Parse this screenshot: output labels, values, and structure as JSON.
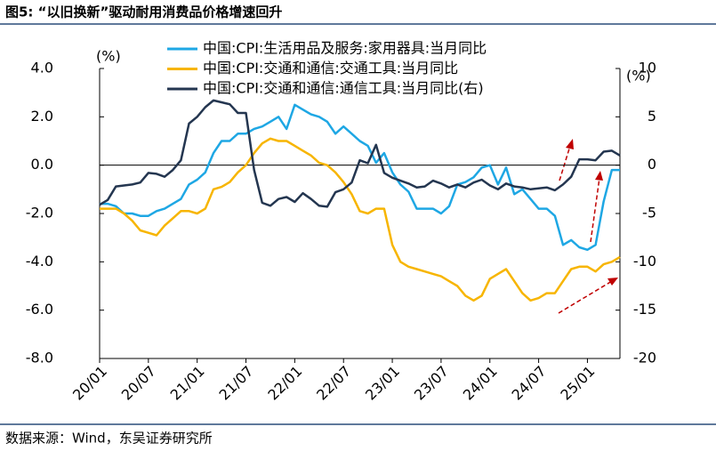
{
  "title": "图5: “以旧换新”驱动耐用消费品价格增速回升",
  "source": "数据来源：Wind，东吴证券研究所",
  "chart_data": {
    "type": "line",
    "y_unit": "(%)",
    "y2_unit": "(%)",
    "categories": [
      "20/01",
      null,
      null,
      null,
      null,
      null,
      "20/07",
      null,
      null,
      null,
      null,
      null,
      "21/01",
      null,
      null,
      null,
      null,
      null,
      "21/07",
      null,
      null,
      null,
      null,
      null,
      "22/01",
      null,
      null,
      null,
      null,
      null,
      "22/07",
      null,
      null,
      null,
      null,
      null,
      "23/01",
      null,
      null,
      null,
      null,
      null,
      "23/07",
      null,
      null,
      null,
      null,
      null,
      "24/01",
      null,
      null,
      null,
      null,
      null,
      "24/07",
      null,
      null,
      null,
      null,
      null,
      "25/01",
      null,
      null,
      null,
      null
    ],
    "ylim": [
      -8,
      4
    ],
    "yticks": [
      {
        "value": 4,
        "label": "4.0"
      },
      {
        "value": 2,
        "label": "2.0"
      },
      {
        "value": 0,
        "label": "0.0"
      },
      {
        "value": -2,
        "label": "-2.0"
      },
      {
        "value": -4,
        "label": "-4.0"
      },
      {
        "value": -6,
        "label": "-6.0"
      },
      {
        "value": -8,
        "label": "-8.0"
      }
    ],
    "y2lim": [
      -20,
      10
    ],
    "y2ticks": [
      10,
      5,
      0,
      -5,
      -10,
      -15,
      -20
    ],
    "series": [
      {
        "name": "中国:CPI:生活用品及服务:家用器具:当月同比",
        "color": "#1ea7e4",
        "values": [
          -1.6,
          -1.6,
          -1.7,
          -2.0,
          -2.0,
          -2.1,
          -2.1,
          -1.9,
          -1.8,
          -1.6,
          -1.4,
          -0.8,
          -0.6,
          -0.3,
          0.5,
          1.0,
          1.0,
          1.3,
          1.3,
          1.5,
          1.6,
          1.8,
          2.0,
          1.5,
          2.5,
          2.3,
          2.1,
          2.0,
          1.8,
          1.3,
          1.6,
          1.3,
          1.0,
          0.8,
          0.1,
          0.5,
          -0.3,
          -0.8,
          -1.1,
          -1.8,
          -1.8,
          -1.8,
          -2.0,
          -1.7,
          -0.8,
          -0.7,
          -0.5,
          -0.1,
          0.0,
          -0.8,
          -0.1,
          -1.2,
          -1.0,
          -1.4,
          -1.8,
          -1.8,
          -2.1,
          -3.3,
          -3.1,
          -3.4,
          -3.5,
          -3.3,
          -1.5,
          -0.2,
          -0.2
        ]
      },
      {
        "name": "中国:CPI:交通和通信:交通工具:当月同比",
        "color": "#f7b500",
        "values": [
          -1.8,
          -1.8,
          -1.8,
          -2.0,
          -2.3,
          -2.7,
          -2.8,
          -2.9,
          -2.5,
          -2.2,
          -1.9,
          -1.9,
          -2.0,
          -1.8,
          -1.0,
          -0.9,
          -0.7,
          -0.3,
          0.0,
          0.5,
          0.9,
          1.1,
          1.0,
          1.0,
          0.8,
          0.6,
          0.4,
          0.1,
          0.0,
          -0.3,
          -0.7,
          -1.2,
          -1.9,
          -2.0,
          -1.8,
          -1.8,
          -3.3,
          -4.0,
          -4.2,
          -4.3,
          -4.4,
          -4.5,
          -4.6,
          -4.8,
          -5.0,
          -5.4,
          -5.6,
          -5.4,
          -4.7,
          -4.5,
          -4.3,
          -4.8,
          -5.3,
          -5.6,
          -5.5,
          -5.3,
          -5.3,
          -4.8,
          -4.3,
          -4.2,
          -4.2,
          -4.4,
          -4.1,
          -4.0,
          -3.8
        ]
      },
      {
        "name": "中国:CPI:交通和通信:通信工具:当月同比(右)",
        "color": "#243650",
        "axis": "y2",
        "values": [
          -4.1,
          -3.6,
          -2.2,
          -2.1,
          -2.0,
          -1.8,
          -0.8,
          -0.9,
          -1.2,
          -0.5,
          0.5,
          4.3,
          5.0,
          6.0,
          6.7,
          6.5,
          6.3,
          5.4,
          5.4,
          -0.5,
          -3.9,
          -4.2,
          -3.5,
          -3.3,
          -3.8,
          -2.9,
          -3.5,
          -4.2,
          -4.3,
          -2.8,
          -2.5,
          -1.8,
          0.5,
          0.2,
          2.1,
          -0.8,
          -1.3,
          -1.6,
          -1.9,
          -2.3,
          -2.2,
          -1.6,
          -1.9,
          -2.3,
          -2.0,
          -2.3,
          -1.8,
          -1.5,
          -2.1,
          -2.5,
          -1.9,
          -2.2,
          -2.3,
          -2.5,
          -2.4,
          -2.3,
          -2.6,
          -2.0,
          -1.2,
          0.6,
          0.6,
          0.5,
          1.4,
          1.5,
          1.0
        ]
      }
    ]
  }
}
